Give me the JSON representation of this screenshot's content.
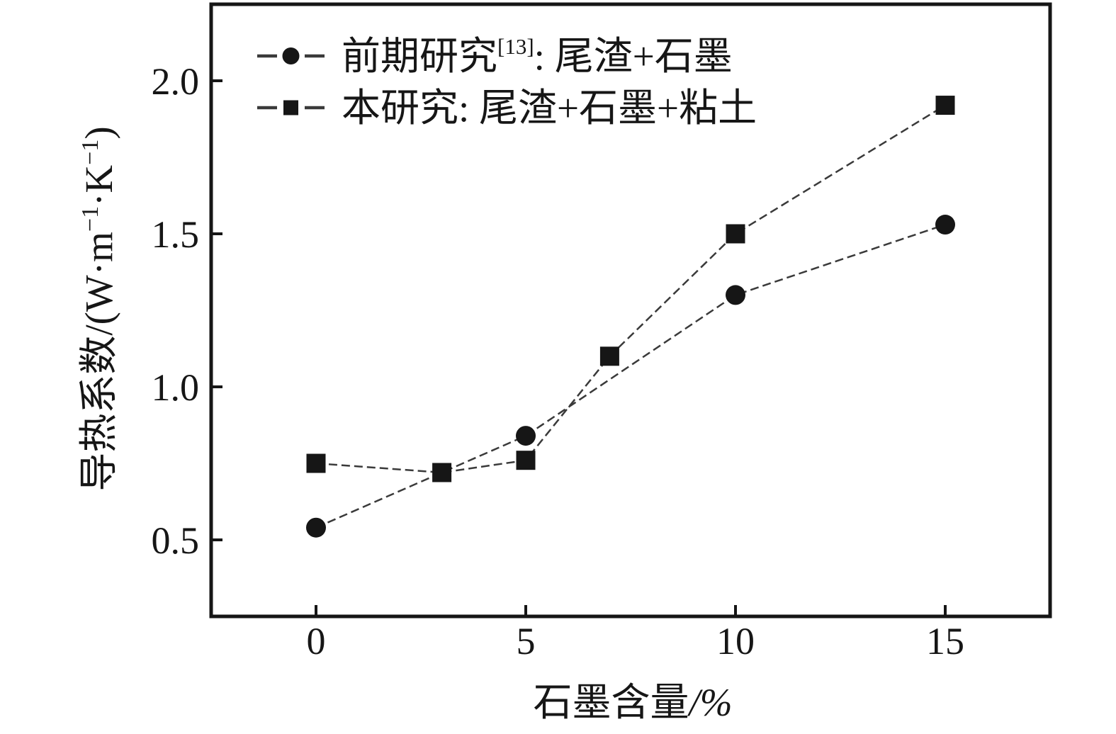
{
  "figure": {
    "background": "#ffffff",
    "ink_color": "#161616",
    "line_color": "#3a3a3a"
  },
  "chart_data": {
    "type": "line",
    "title": "",
    "xlabel": "石墨含量/%",
    "ylabel": "导热系数/(W·m−1·K−1)",
    "xlabel_segments": [
      {
        "t": "石墨含量"
      },
      {
        "t": "/%",
        "italic": true
      }
    ],
    "ylabel_segments": [
      {
        "t": "导热系数/(W·m"
      },
      {
        "t": "−1",
        "sup": true
      },
      {
        "t": "·K"
      },
      {
        "t": "−1",
        "sup": true
      },
      {
        "t": ")"
      }
    ],
    "x_ticks": [
      0,
      5,
      10,
      15
    ],
    "y_ticks": [
      2.0,
      1.5,
      1.0,
      0.5
    ],
    "xlim": [
      -2.5,
      17.5
    ],
    "ylim": [
      0.25,
      2.25
    ],
    "grid": false,
    "legend_position": "top-left",
    "line_style": "dashed",
    "series": [
      {
        "name": "前期研究[13]: 尾渣+石墨",
        "marker": "circle",
        "x": [
          0,
          5,
          10,
          15
        ],
        "y": [
          0.54,
          0.84,
          1.3,
          1.53
        ],
        "label_segments": [
          {
            "t": "前期研究"
          },
          {
            "t": "[13]",
            "sup": true
          },
          {
            "t": ": 尾渣+石墨"
          }
        ]
      },
      {
        "name": "本研究: 尾渣+石墨+粘土",
        "marker": "square",
        "x": [
          0,
          3,
          5,
          7,
          10,
          15
        ],
        "y": [
          0.75,
          0.72,
          0.76,
          1.1,
          1.5,
          1.92
        ],
        "label_segments": [
          {
            "t": "本研究: 尾渣+石墨+粘土"
          }
        ]
      }
    ]
  }
}
